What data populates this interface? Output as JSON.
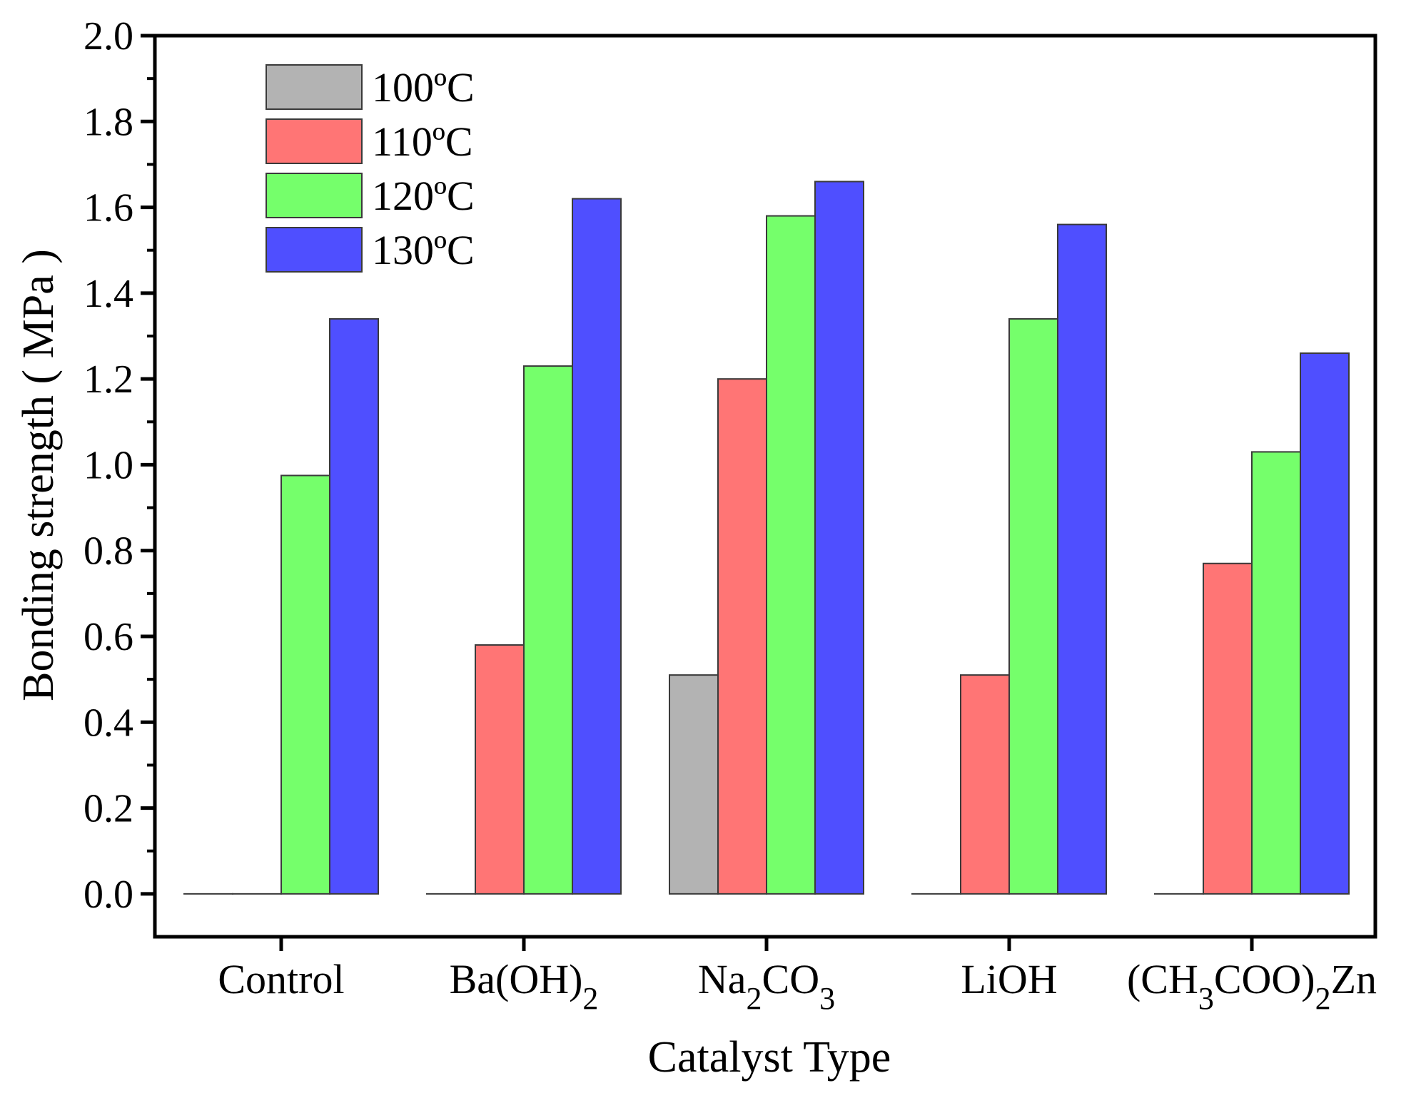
{
  "chart_data": {
    "type": "bar",
    "title": "",
    "xlabel": "Catalyst Type",
    "ylabel": "Bonding strength ( MPa )",
    "ylim": [
      -0.1,
      2.0
    ],
    "yticks": [
      "0.0",
      "0.2",
      "0.4",
      "0.6",
      "0.8",
      "1.0",
      "1.2",
      "1.4",
      "1.6",
      "1.8",
      "2.0"
    ],
    "ytick_values": [
      0.0,
      0.2,
      0.4,
      0.6,
      0.8,
      1.0,
      1.2,
      1.4,
      1.6,
      1.8,
      2.0
    ],
    "categories": [
      "Control",
      "Ba(OH)2",
      "Na2CO3",
      "LiOH",
      "(CH3COO)2Zn"
    ],
    "category_labels": [
      [
        {
          "t": "Control",
          "s": false
        }
      ],
      [
        {
          "t": "Ba(OH)",
          "s": false
        },
        {
          "t": "2",
          "s": true
        }
      ],
      [
        {
          "t": "Na",
          "s": false
        },
        {
          "t": "2",
          "s": true
        },
        {
          "t": "CO",
          "s": false
        },
        {
          "t": "3",
          "s": true
        }
      ],
      [
        {
          "t": "LiOH",
          "s": false
        }
      ],
      [
        {
          "t": "(CH",
          "s": false
        },
        {
          "t": "3",
          "s": true
        },
        {
          "t": "COO)",
          "s": false
        },
        {
          "t": "2",
          "s": true
        },
        {
          "t": "Zn",
          "s": false
        }
      ]
    ],
    "series": [
      {
        "name": "100ºC",
        "color": "#b3b3b3",
        "values": [
          0.0,
          0.0,
          0.51,
          0.0,
          0.0
        ]
      },
      {
        "name": "110ºC",
        "color": "#ff7575",
        "values": [
          0.0,
          0.58,
          1.2,
          0.51,
          0.77
        ]
      },
      {
        "name": "120ºC",
        "color": "#75ff6b",
        "values": [
          0.975,
          1.23,
          1.58,
          1.34,
          1.03
        ]
      },
      {
        "name": "130ºC",
        "color": "#4f4fff",
        "values": [
          1.34,
          1.62,
          1.66,
          1.56,
          1.26
        ]
      }
    ],
    "legend_position": "top-left",
    "grid": false
  }
}
